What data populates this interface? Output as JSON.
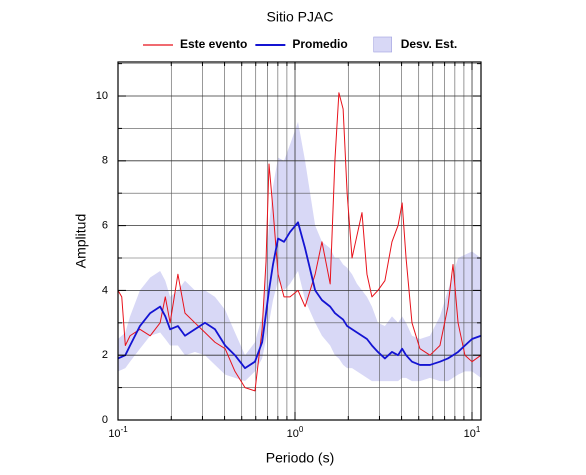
{
  "chart_data": {
    "type": "line",
    "title": "Sitio PJAC",
    "xlabel": "Periodo (s)",
    "ylabel": "Amplitud",
    "xscale": "log",
    "grid": true,
    "legend": "top",
    "xlim": [
      0.1,
      11.24
    ],
    "ylim": [
      0,
      11.05
    ],
    "xticks": [
      {
        "value": 0.1,
        "label": "10",
        "exponent": "-1"
      },
      {
        "value": 1,
        "label": "10",
        "exponent": "0"
      },
      {
        "value": 10,
        "label": "10",
        "exponent": "1"
      }
    ],
    "xminor": [
      0.2,
      0.3,
      0.4,
      0.5,
      0.6,
      0.7,
      0.8,
      0.9,
      2,
      3,
      4,
      5,
      6,
      7,
      8,
      9
    ],
    "yticks": [
      0,
      2,
      4,
      6,
      8,
      10
    ],
    "yminor": [
      1,
      3,
      5,
      7,
      9,
      11
    ],
    "x": [
      0.1,
      0.105,
      0.11,
      0.117,
      0.133,
      0.152,
      0.173,
      0.185,
      0.197,
      0.218,
      0.239,
      0.272,
      0.31,
      0.353,
      0.403,
      0.458,
      0.522,
      0.594,
      0.652,
      0.686,
      0.713,
      0.751,
      0.802,
      0.867,
      0.937,
      1.04,
      1.14,
      1.3,
      1.42,
      1.58,
      1.68,
      1.77,
      1.87,
      1.97,
      2.1,
      2.24,
      2.39,
      2.55,
      2.72,
      2.94,
      3.22,
      3.53,
      3.82,
      4.03,
      4.24,
      4.58,
      5.08,
      5.79,
      6.59,
      7.31,
      7.81,
      8.34,
      9.12,
      10.0,
      11.24
    ],
    "series": [
      {
        "name": "Este evento",
        "color": "#e8121b",
        "values": [
          4.0,
          3.8,
          2.3,
          2.6,
          2.8,
          2.6,
          3.0,
          3.8,
          3.0,
          4.5,
          3.3,
          3.0,
          2.7,
          2.4,
          2.2,
          1.5,
          1.0,
          0.9,
          2.8,
          4.9,
          7.9,
          6.5,
          4.5,
          3.8,
          3.8,
          4.0,
          3.5,
          4.5,
          5.5,
          4.2,
          8.0,
          10.1,
          9.6,
          7.0,
          5.0,
          5.7,
          6.4,
          4.5,
          3.8,
          4.0,
          4.3,
          5.5,
          6.0,
          6.7,
          5.0,
          3.0,
          2.2,
          2.0,
          2.3,
          3.5,
          4.8,
          3.0,
          2.0,
          1.8,
          2.0
        ]
      },
      {
        "name": "Promedio",
        "color": "#1414d2",
        "values": [
          1.9,
          1.95,
          2.0,
          2.3,
          2.9,
          3.3,
          3.5,
          3.2,
          2.8,
          2.9,
          2.6,
          2.8,
          3.0,
          2.8,
          2.3,
          2.0,
          1.6,
          1.8,
          2.4,
          3.3,
          4.0,
          4.8,
          5.6,
          5.5,
          5.8,
          6.1,
          5.3,
          4.0,
          3.7,
          3.5,
          3.3,
          3.2,
          3.1,
          2.9,
          2.8,
          2.7,
          2.6,
          2.5,
          2.3,
          2.1,
          1.9,
          2.1,
          2.0,
          2.2,
          2.0,
          1.8,
          1.7,
          1.7,
          1.8,
          1.9,
          2.0,
          2.1,
          2.3,
          2.5,
          2.6
        ]
      },
      {
        "name": "Desv. Est.",
        "color": "#d8d8f6",
        "lower": [
          1.5,
          1.55,
          1.6,
          1.8,
          2.2,
          2.6,
          2.7,
          2.5,
          2.3,
          2.3,
          2.0,
          2.1,
          2.0,
          1.7,
          1.4,
          1.3,
          1.2,
          1.5,
          1.9,
          2.5,
          3.0,
          3.7,
          4.3,
          4.0,
          4.2,
          4.6,
          3.7,
          3.0,
          2.6,
          2.3,
          2.0,
          1.9,
          1.7,
          1.6,
          1.6,
          1.5,
          1.4,
          1.3,
          1.2,
          1.2,
          1.2,
          1.2,
          1.2,
          1.3,
          1.3,
          1.2,
          1.2,
          1.3,
          1.2,
          1.2,
          1.3,
          1.4,
          1.5,
          1.5,
          1.3
        ],
        "upper": [
          2.5,
          2.6,
          2.7,
          3.2,
          4.0,
          4.4,
          4.6,
          4.3,
          3.8,
          4.0,
          4.3,
          4.0,
          4.0,
          3.8,
          3.4,
          2.7,
          2.0,
          2.4,
          3.2,
          4.8,
          6.0,
          7.2,
          8.1,
          8.0,
          8.5,
          9.2,
          8.0,
          6.0,
          5.5,
          5.3,
          5.0,
          5.0,
          4.8,
          4.7,
          4.5,
          4.2,
          4.0,
          3.8,
          3.5,
          3.0,
          2.9,
          3.2,
          3.0,
          3.2,
          3.0,
          2.6,
          2.5,
          2.6,
          3.2,
          4.0,
          4.5,
          5.0,
          5.1,
          5.2,
          5.0
        ]
      }
    ]
  }
}
